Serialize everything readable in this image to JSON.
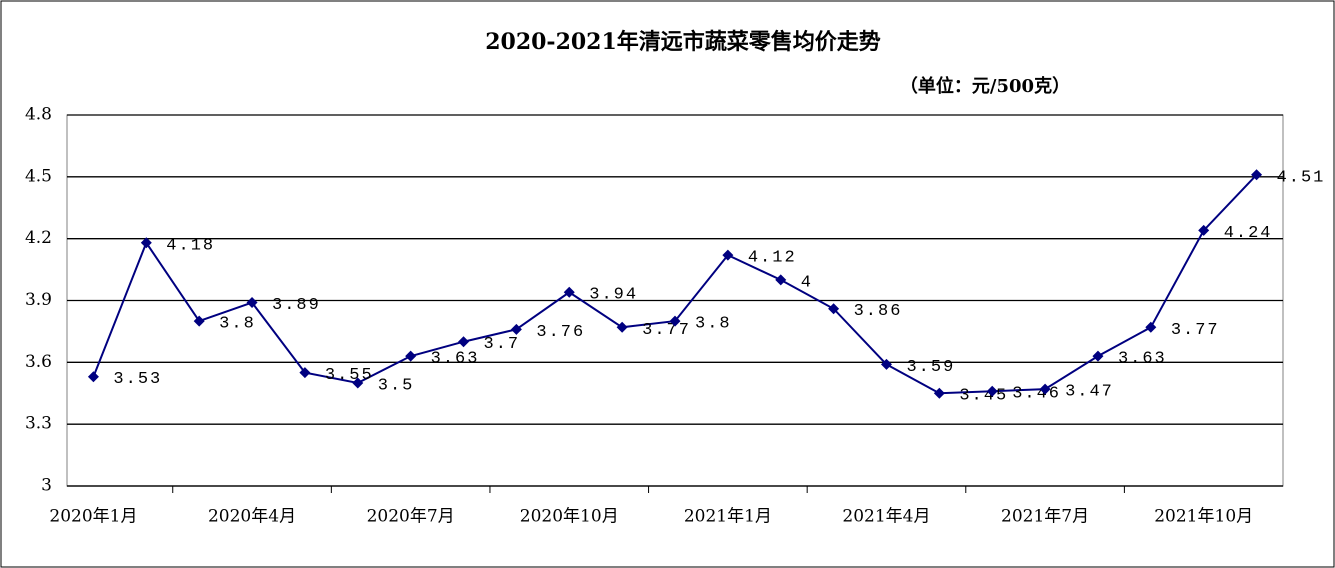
{
  "chart_data": {
    "type": "line",
    "title": "2020-2021年清远市蔬菜零售均价走势",
    "subtitle": "（单位：元/500克）",
    "categories": [
      "2020年1月",
      null,
      null,
      "2020年4月",
      null,
      null,
      "2020年7月",
      null,
      null,
      "2020年10月",
      null,
      null,
      "2021年1月",
      null,
      null,
      "2021年4月",
      null,
      null,
      "2021年7月",
      null,
      null,
      "2021年10月",
      null
    ],
    "series": [
      {
        "name": "蔬菜零售均价",
        "color": "#000080",
        "values": [
          3.53,
          4.18,
          3.8,
          3.89,
          3.55,
          3.5,
          3.63,
          3.7,
          3.76,
          3.94,
          3.77,
          3.8,
          4.12,
          4,
          3.86,
          3.59,
          3.45,
          3.46,
          3.47,
          3.63,
          3.77,
          4.24,
          4.51
        ]
      }
    ],
    "ylim": [
      3,
      4.8
    ],
    "yticks": [
      3,
      3.3,
      3.6,
      3.9,
      4.2,
      4.5,
      4.8
    ],
    "grid": true
  }
}
